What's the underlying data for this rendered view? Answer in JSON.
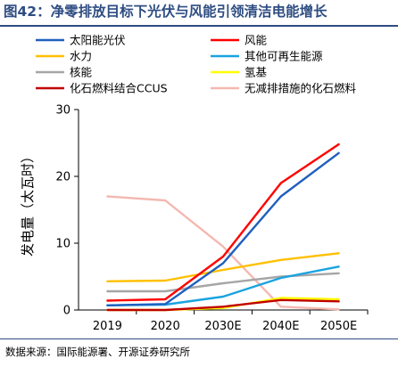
{
  "title": "图42：净零排放目标下光伏与风能引领清洁电能增长",
  "source": "数据来源：国际能源署、开源证券研究所",
  "chart_data": {
    "type": "line",
    "ylabel": "发电量（太瓦时）",
    "xlabel": "",
    "categories": [
      "2019",
      "2020",
      "2030E",
      "2040E",
      "2050E"
    ],
    "ylim": [
      0,
      30
    ],
    "yticks": [
      0,
      10,
      20,
      30
    ],
    "grid": false,
    "legend_position": "top",
    "series": [
      {
        "name": "太阳能光伏",
        "color": "#1f5fbf",
        "values": [
          0.7,
          0.9,
          7,
          17,
          23.5
        ]
      },
      {
        "name": "风能",
        "color": "#ff0000",
        "values": [
          1.4,
          1.6,
          8,
          19,
          24.8
        ]
      },
      {
        "name": "水力",
        "color": "#ffc000",
        "values": [
          4.3,
          4.4,
          6,
          7.5,
          8.5
        ]
      },
      {
        "name": "其他可再生能源",
        "color": "#1aa3e0",
        "values": [
          0.7,
          0.8,
          2,
          4.8,
          6.5
        ]
      },
      {
        "name": "核能",
        "color": "#a6a6a6",
        "values": [
          2.8,
          2.8,
          4,
          5,
          5.5
        ]
      },
      {
        "name": "氢基",
        "color": "#ffff00",
        "values": [
          0,
          0,
          0.3,
          1.8,
          1.6
        ]
      },
      {
        "name": "化石燃料结合CCUS",
        "color": "#c00000",
        "values": [
          0,
          0,
          0.5,
          1.5,
          1.3
        ]
      },
      {
        "name": "无减排措施的化石燃料",
        "color": "#f4b8b0",
        "values": [
          17,
          16.4,
          9.5,
          0.5,
          0.1
        ]
      }
    ]
  }
}
